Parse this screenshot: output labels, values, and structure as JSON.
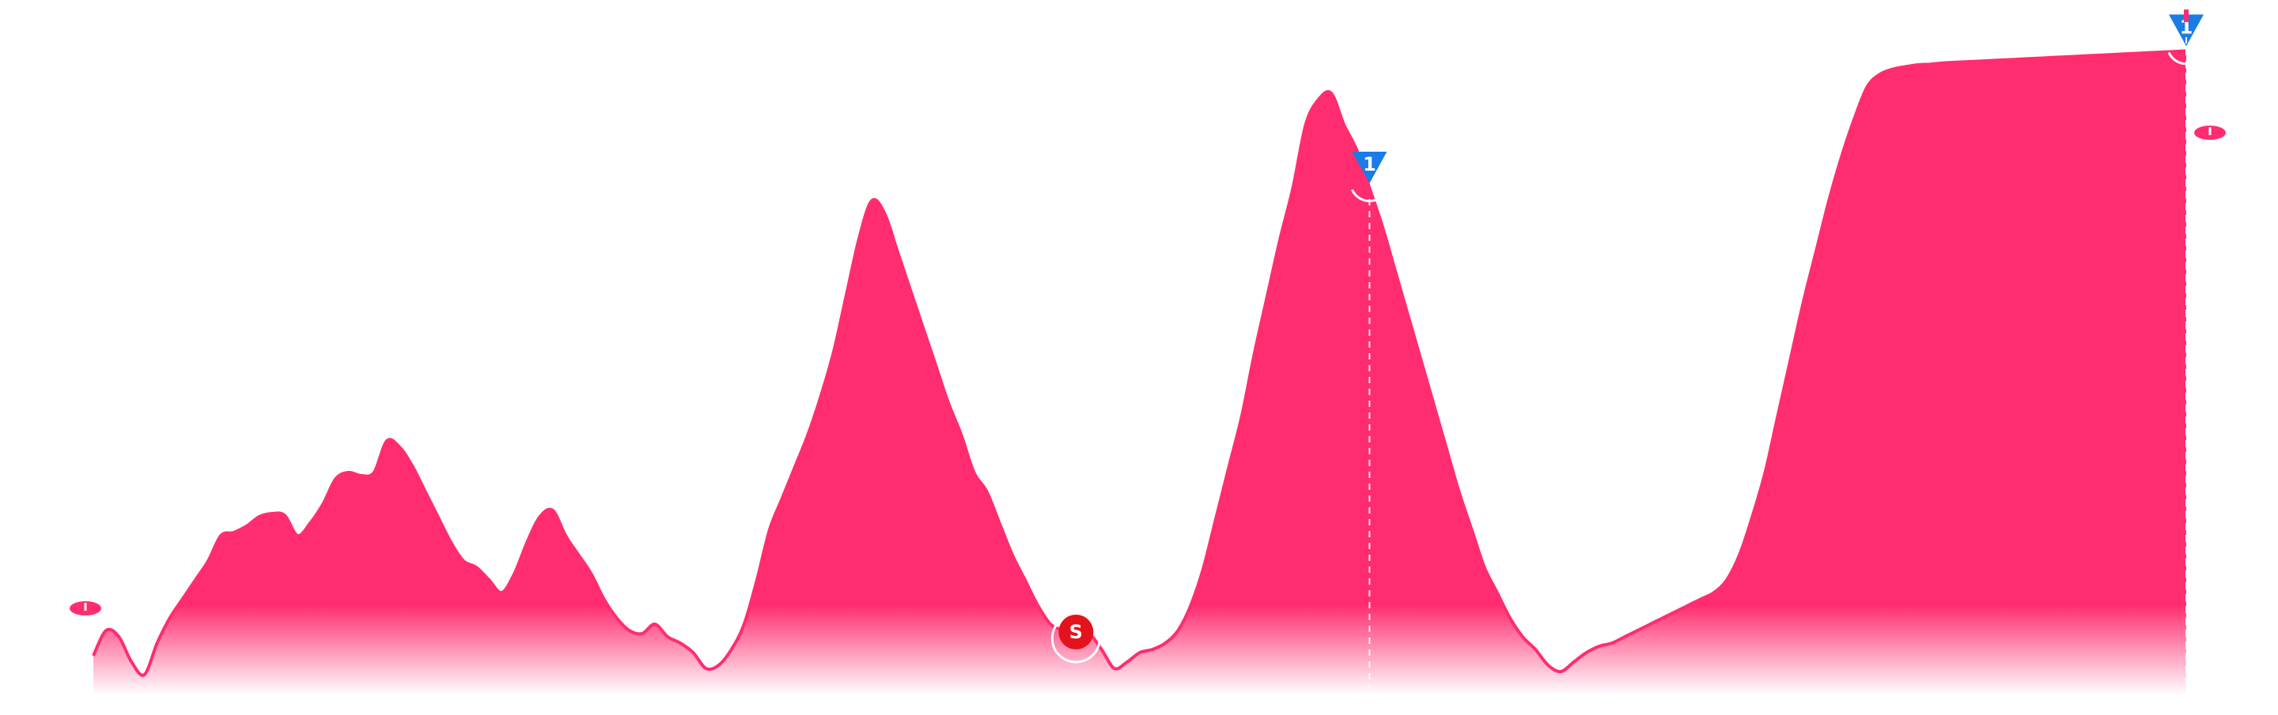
{
  "colors": {
    "profile": "#ff2d6f",
    "kom": "#1a7ce6",
    "sprint": "#e4121c",
    "guide": "#ffffff"
  },
  "chart_data": {
    "type": "area",
    "title": "",
    "xlabel": "",
    "ylabel": "",
    "x_unit": "km",
    "y_unit": "m",
    "xlim": [
      0,
      164
    ],
    "ylim": [
      0,
      1000
    ],
    "x": [
      0,
      1,
      2,
      3,
      4,
      5,
      6,
      7,
      8,
      9,
      10,
      11,
      12,
      13,
      14,
      15,
      16,
      17,
      18,
      19,
      20,
      21,
      22,
      23,
      24,
      25,
      26,
      27,
      28,
      29,
      30,
      31,
      32,
      33,
      34,
      35,
      36,
      37,
      38,
      39,
      40,
      41,
      42,
      43,
      44,
      45,
      46,
      47,
      48,
      49,
      50,
      51,
      52,
      53,
      54,
      55,
      56,
      57,
      58,
      59,
      60,
      61,
      62,
      63,
      64,
      65,
      66,
      67,
      68,
      69,
      70,
      71,
      72,
      73,
      74,
      75,
      76,
      77,
      78,
      79,
      80,
      81,
      82,
      83,
      84,
      85,
      86,
      87,
      88,
      89,
      90,
      91,
      92,
      93,
      94,
      95,
      96,
      97,
      98,
      99,
      100,
      101,
      102,
      103,
      104,
      105,
      106,
      107,
      108,
      109,
      110,
      111,
      112,
      113,
      114,
      115,
      116,
      117,
      118,
      119,
      120,
      121,
      122,
      123,
      124,
      125,
      126,
      127,
      128,
      129,
      130,
      131,
      132,
      133,
      134,
      135,
      136,
      137,
      138,
      139,
      140,
      141,
      142,
      143,
      144,
      145,
      146,
      147,
      148,
      149,
      150,
      151,
      152,
      153,
      154,
      155,
      156,
      157,
      158,
      159,
      160,
      161,
      162,
      163,
      164
    ],
    "y": [
      40,
      80,
      70,
      30,
      10,
      60,
      100,
      130,
      160,
      190,
      230,
      235,
      245,
      260,
      265,
      262,
      230,
      250,
      280,
      320,
      330,
      325,
      330,
      380,
      370,
      340,
      300,
      260,
      220,
      190,
      180,
      160,
      140,
      170,
      220,
      260,
      270,
      230,
      200,
      170,
      130,
      100,
      80,
      75,
      90,
      70,
      60,
      45,
      20,
      25,
      50,
      90,
      160,
      240,
      290,
      340,
      390,
      450,
      520,
      610,
      700,
      760,
      740,
      680,
      620,
      560,
      500,
      440,
      390,
      330,
      300,
      250,
      200,
      160,
      120,
      90,
      80,
      70,
      75,
      50,
      20,
      30,
      45,
      50,
      60,
      80,
      120,
      180,
      260,
      340,
      420,
      520,
      610,
      700,
      780,
      880,
      920,
      930,
      880,
      840,
      780,
      720,
      650,
      580,
      510,
      440,
      370,
      300,
      240,
      180,
      140,
      100,
      70,
      50,
      25,
      15,
      30,
      45,
      55,
      60,
      70,
      80,
      90,
      100,
      110,
      120,
      130,
      140,
      160,
      200,
      260,
      330,
      420,
      510,
      600,
      680,
      760,
      830,
      890,
      940,
      960,
      968,
      972,
      975,
      976,
      978,
      979,
      980,
      981,
      982,
      983,
      984,
      985,
      986,
      987,
      988,
      989,
      990,
      991,
      992,
      993,
      994,
      995,
      996,
      997
    ],
    "markers": [
      {
        "kind": "start",
        "km": 0,
        "label": ""
      },
      {
        "kind": "sprint",
        "km": 77,
        "label": "S"
      },
      {
        "kind": "kom",
        "km": 100,
        "label": "1"
      },
      {
        "kind": "kom",
        "km": 164,
        "label": "1"
      },
      {
        "kind": "finish",
        "km": 164,
        "label": ""
      }
    ]
  }
}
